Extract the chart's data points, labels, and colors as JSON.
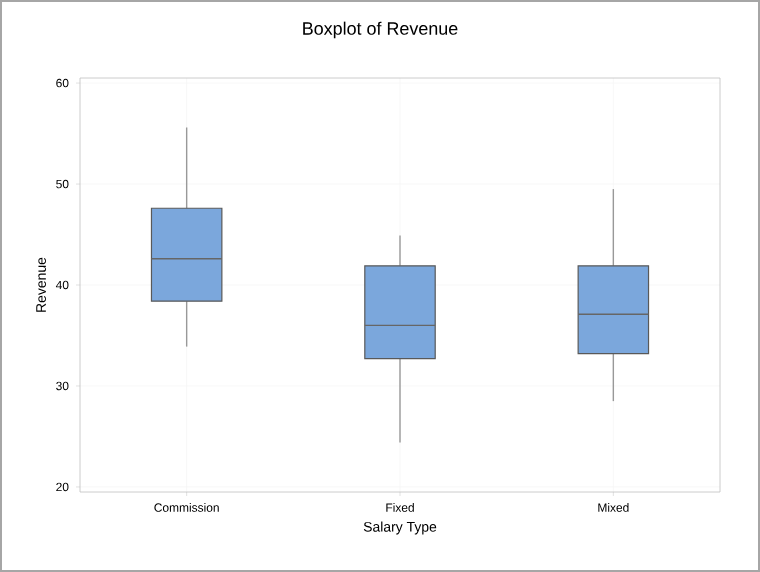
{
  "chart_data": {
    "type": "box",
    "title": "Boxplot of Revenue",
    "xlabel": "Salary Type",
    "ylabel": "Revenue",
    "categories": [
      "Commission",
      "Fixed",
      "Mixed"
    ],
    "boxes": [
      {
        "low": 33.9,
        "q1": 38.4,
        "median": 42.6,
        "q3": 47.6,
        "high": 55.6
      },
      {
        "low": 24.4,
        "q1": 32.7,
        "median": 36.0,
        "q3": 41.9,
        "high": 44.9
      },
      {
        "low": 28.5,
        "q1": 33.2,
        "median": 37.1,
        "q3": 41.9,
        "high": 49.5
      }
    ],
    "color": "#7ba7dc",
    "ylim": [
      19.5,
      60.5
    ],
    "yticks": [
      20,
      30,
      40,
      50,
      60
    ],
    "grid": true
  }
}
